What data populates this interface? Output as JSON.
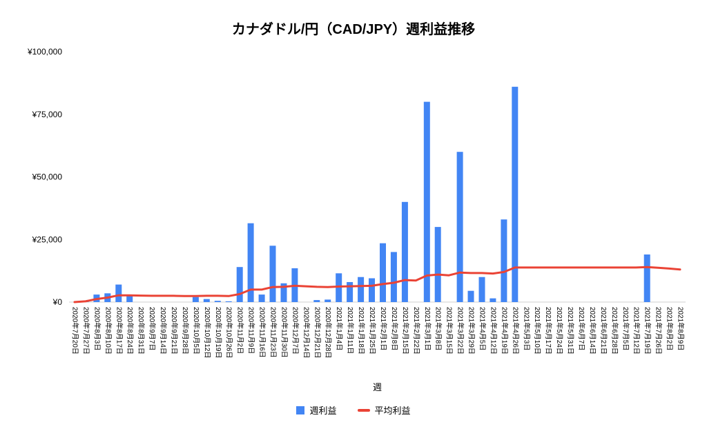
{
  "chart_data": {
    "type": "bar",
    "title": "カナダドル/円（CAD/JPY）週利益推移",
    "xlabel": "週",
    "ylabel": "",
    "ylim": [
      0,
      100000
    ],
    "grid": false,
    "legend_position": "bottom",
    "colors": {
      "bar": "#4285f4",
      "line": "#ea4335",
      "axis": "#cfcfcf",
      "text": "#000000"
    },
    "y_ticks": [
      {
        "value": 0,
        "label": "¥0"
      },
      {
        "value": 25000,
        "label": "¥25,000"
      },
      {
        "value": 50000,
        "label": "¥50,000"
      },
      {
        "value": 75000,
        "label": "¥75,000"
      },
      {
        "value": 100000,
        "label": "¥100,000"
      }
    ],
    "categories": [
      "2020年7月20日",
      "2020年7月27日",
      "2020年8月3日",
      "2020年8月10日",
      "2020年8月17日",
      "2020年8月24日",
      "2020年8月31日",
      "2020年9月7日",
      "2020年9月14日",
      "2020年9月21日",
      "2020年9月28日",
      "2020年10月5日",
      "2020年10月12日",
      "2020年10月19日",
      "2020年10月26日",
      "2020年11月2日",
      "2020年11月9日",
      "2020年11月16日",
      "2020年11月23日",
      "2020年11月30日",
      "2020年12月7日",
      "2020年12月14日",
      "2020年12月21日",
      "2020年12月28日",
      "2021年1月4日",
      "2021年1月11日",
      "2021年1月18日",
      "2021年1月25日",
      "2021年2月1日",
      "2021年2月8日",
      "2021年2月15日",
      "2021年2月22日",
      "2021年3月1日",
      "2021年3月8日",
      "2021年3月15日",
      "2021年3月22日",
      "2021年3月29日",
      "2021年4月5日",
      "2021年4月12日",
      "2021年4月19日",
      "2021年4月26日",
      "2021年5月3日",
      "2021年5月10日",
      "2021年5月17日",
      "2021年5月24日",
      "2021年5月31日",
      "2021年6月7日",
      "2021年6月14日",
      "2021年6月21日",
      "2021年6月28日",
      "2021年7月5日",
      "2021年7月12日",
      "2021年7月19日",
      "2021年7月26日",
      "2021年8月2日",
      "2021年8月9日"
    ],
    "series": [
      {
        "name": "週利益",
        "type": "bar",
        "color": "#4285f4",
        "values": [
          0,
          300,
          3000,
          3500,
          7000,
          2500,
          0,
          0,
          0,
          0,
          0,
          2000,
          1200,
          500,
          300,
          14000,
          31500,
          3000,
          22500,
          7500,
          13500,
          0,
          800,
          1000,
          11500,
          8000,
          10000,
          9500,
          23500,
          20000,
          40000,
          0,
          80000,
          30000,
          0,
          60000,
          4500,
          10000,
          1500,
          33000,
          86000,
          0,
          0,
          0,
          0,
          0,
          0,
          0,
          0,
          0,
          0,
          0,
          19000,
          0,
          0,
          0
        ]
      },
      {
        "name": "平均利益",
        "type": "line",
        "color": "#ea4335",
        "values": [
          0,
          300,
          1200,
          1800,
          2700,
          2700,
          2600,
          2500,
          2500,
          2500,
          2400,
          2400,
          2500,
          2500,
          2400,
          3200,
          5000,
          5000,
          6000,
          6100,
          6500,
          6300,
          6100,
          6000,
          6200,
          6300,
          6400,
          6500,
          7200,
          7700,
          8800,
          8600,
          10600,
          11000,
          10700,
          11800,
          11600,
          11600,
          11400,
          12000,
          13800,
          13800,
          13800,
          13800,
          13800,
          13800,
          13800,
          13800,
          13800,
          13800,
          13800,
          13800,
          14000,
          13700,
          13400,
          13000
        ]
      }
    ]
  }
}
